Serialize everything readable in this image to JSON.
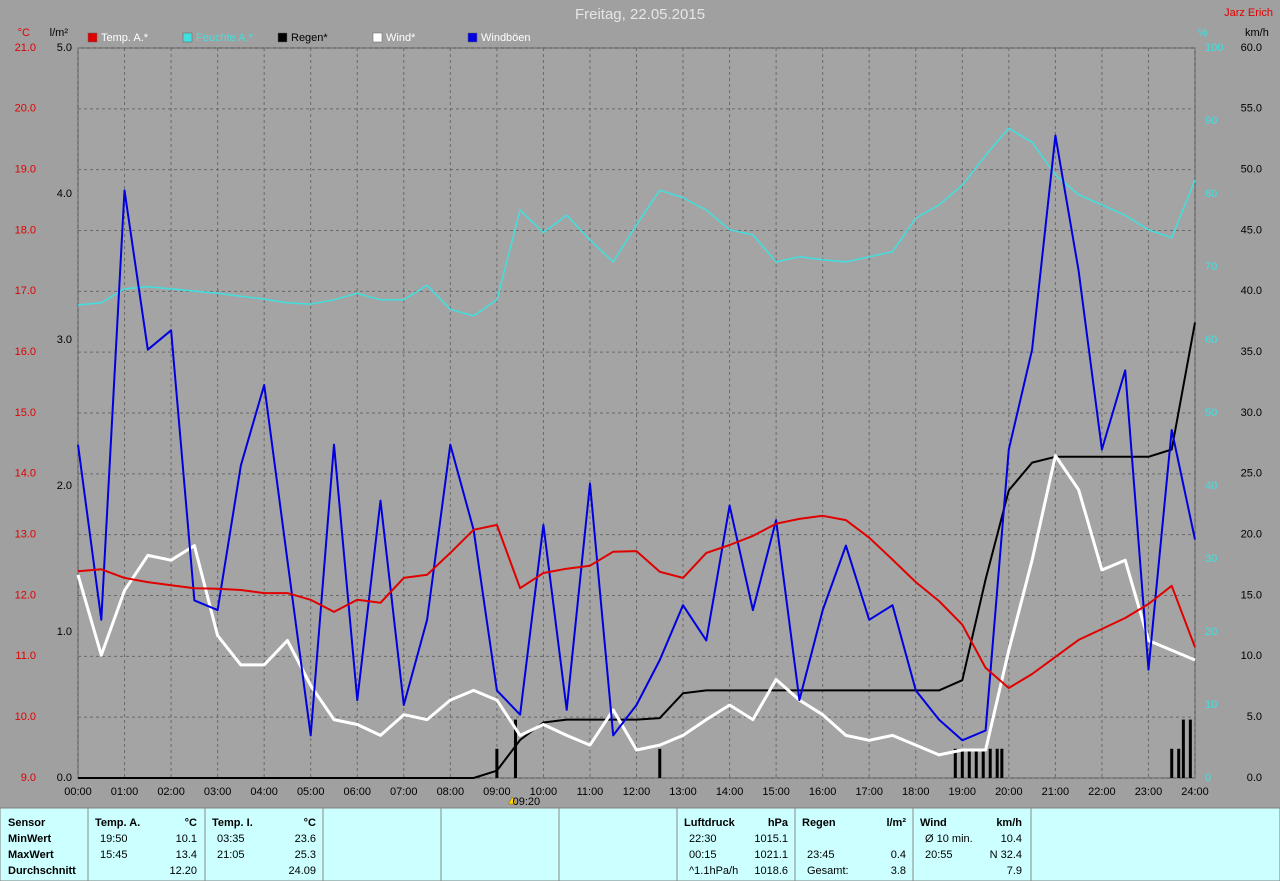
{
  "chart_data": {
    "type": "line",
    "title": "Freitag, 22.05.2015",
    "author": "Jarz Erich",
    "ylabel": "°C",
    "y2label": "l/m²",
    "y3label": "%",
    "y4label": "km/h",
    "xlim": [
      0,
      24
    ],
    "xticks": [
      {
        "value": 0,
        "label": "00:00"
      },
      {
        "value": 1,
        "label": "01:00"
      },
      {
        "value": 2,
        "label": "02:00"
      },
      {
        "value": 3,
        "label": "03:00"
      },
      {
        "value": 4,
        "label": "04:00"
      },
      {
        "value": 5,
        "label": "05:00"
      },
      {
        "value": 6,
        "label": "06:00"
      },
      {
        "value": 7,
        "label": "07:00"
      },
      {
        "value": 8,
        "label": "08:00"
      },
      {
        "value": 9,
        "label": "09:00"
      },
      {
        "value": 10,
        "label": "10:00"
      },
      {
        "value": 11,
        "label": "11:00"
      },
      {
        "value": 12,
        "label": "12:00"
      },
      {
        "value": 13,
        "label": "13:00"
      },
      {
        "value": 14,
        "label": "14:00"
      },
      {
        "value": 15,
        "label": "15:00"
      },
      {
        "value": 16,
        "label": "16:00"
      },
      {
        "value": 17,
        "label": "17:00"
      },
      {
        "value": 18,
        "label": "18:00"
      },
      {
        "value": 19,
        "label": "19:00"
      },
      {
        "value": 20,
        "label": "20:00"
      },
      {
        "value": 21,
        "label": "21:00"
      },
      {
        "value": 22,
        "label": "22:00"
      },
      {
        "value": 23,
        "label": "23:00"
      },
      {
        "value": 24,
        "label": "24:00"
      }
    ],
    "ylim": [
      9,
      21
    ],
    "yticks": [
      {
        "value": 9,
        "label": "9.0"
      },
      {
        "value": 10,
        "label": "10.0"
      },
      {
        "value": 11,
        "label": "11.0"
      },
      {
        "value": 12,
        "label": "12.0"
      },
      {
        "value": 13,
        "label": "13.0"
      },
      {
        "value": 14,
        "label": "14.0"
      },
      {
        "value": 15,
        "label": "15.0"
      },
      {
        "value": 16,
        "label": "16.0"
      },
      {
        "value": 17,
        "label": "17.0"
      },
      {
        "value": 18,
        "label": "18.0"
      },
      {
        "value": 19,
        "label": "19.0"
      },
      {
        "value": 20,
        "label": "20.0"
      },
      {
        "value": 21,
        "label": "21.0"
      }
    ],
    "y2lim": [
      0,
      5
    ],
    "y2ticks": [
      {
        "value": 0,
        "label": "0.0"
      },
      {
        "value": 1,
        "label": "1.0"
      },
      {
        "value": 2,
        "label": "2.0"
      },
      {
        "value": 3,
        "label": "3.0"
      },
      {
        "value": 4,
        "label": "4.0"
      },
      {
        "value": 5,
        "label": "5.0"
      }
    ],
    "y3lim": [
      0,
      100
    ],
    "y3ticks": [
      0,
      10,
      20,
      30,
      40,
      50,
      60,
      70,
      80,
      90,
      100
    ],
    "y4lim": [
      0,
      60
    ],
    "y4ticks": [
      {
        "value": 0,
        "label": "0.0"
      },
      {
        "value": 5,
        "label": "5.0"
      },
      {
        "value": 10,
        "label": "10.0"
      },
      {
        "value": 15,
        "label": "15.0"
      },
      {
        "value": 20,
        "label": "20.0"
      },
      {
        "value": 25,
        "label": "25.0"
      },
      {
        "value": 30,
        "label": "30.0"
      },
      {
        "value": 35,
        "label": "35.0"
      },
      {
        "value": 40,
        "label": "40.0"
      },
      {
        "value": 45,
        "label": "45.0"
      },
      {
        "value": 50,
        "label": "50.0"
      },
      {
        "value": 55,
        "label": "55.0"
      },
      {
        "value": 60,
        "label": "60.0"
      }
    ],
    "grid": true,
    "marker": {
      "value": 9.333,
      "label": "09:20"
    },
    "x": [
      0,
      0.5,
      1,
      1.5,
      2,
      2.5,
      3,
      3.5,
      4,
      4.5,
      5,
      5.5,
      6,
      6.5,
      7,
      7.5,
      8,
      8.5,
      9,
      9.5,
      10,
      10.5,
      11,
      11.5,
      12,
      12.5,
      13,
      13.5,
      14,
      14.5,
      15,
      15.5,
      16,
      16.5,
      17,
      17.5,
      18,
      18.5,
      19,
      19.5,
      20,
      20.5,
      21,
      21.5,
      22,
      22.5,
      23,
      23.5,
      24
    ],
    "series": [
      {
        "name": "Temp. A.*",
        "color": "#e00000",
        "label_color": "#ffffff",
        "axis": "y",
        "width": 2,
        "values": [
          12.4,
          12.43,
          12.29,
          12.22,
          12.17,
          12.12,
          12.11,
          12.09,
          12.04,
          12.04,
          11.93,
          11.73,
          11.93,
          11.88,
          12.29,
          12.34,
          12.7,
          13.08,
          13.16,
          12.12,
          12.37,
          12.44,
          12.49,
          12.72,
          12.73,
          12.39,
          12.29,
          12.7,
          12.83,
          12.98,
          13.18,
          13.26,
          13.31,
          13.24,
          12.95,
          12.59,
          12.22,
          11.91,
          11.52,
          10.81,
          10.48,
          10.71,
          10.99,
          11.27,
          11.45,
          11.63,
          11.86,
          12.16,
          11.15
        ]
      },
      {
        "name": "Feuchte A.*",
        "color": "#40e0e0",
        "label_color": "#40e0e0",
        "axis": "y3",
        "width": 1.5,
        "values": [
          64.8,
          65.1,
          67.0,
          67.3,
          67.0,
          66.7,
          66.4,
          66.0,
          65.6,
          65.1,
          64.9,
          65.5,
          66.4,
          65.5,
          65.5,
          67.5,
          64.2,
          63.3,
          65.5,
          77.8,
          74.7,
          77.1,
          73.7,
          70.7,
          75.8,
          80.5,
          79.5,
          77.8,
          75.1,
          74.4,
          70.7,
          71.4,
          71.0,
          70.7,
          71.4,
          72.1,
          76.7,
          78.5,
          81.2,
          85.3,
          89.0,
          87.1,
          82.6,
          79.9,
          78.5,
          77.1,
          75.1,
          74.0,
          81.9
        ]
      },
      {
        "name": "Regen*",
        "color": "#000000",
        "label_color": "#000000",
        "axis": "y2",
        "width": 2,
        "values": [
          0,
          0,
          0,
          0,
          0,
          0,
          0,
          0,
          0,
          0,
          0,
          0,
          0,
          0,
          0,
          0,
          0,
          0,
          0.05,
          0.26,
          0.38,
          0.4,
          0.4,
          0.4,
          0.4,
          0.41,
          0.58,
          0.6,
          0.6,
          0.6,
          0.6,
          0.6,
          0.6,
          0.6,
          0.6,
          0.6,
          0.6,
          0.6,
          0.67,
          1.36,
          1.97,
          2.16,
          2.2,
          2.2,
          2.2,
          2.2,
          2.2,
          2.25,
          3.12
        ]
      },
      {
        "name": "Wind*",
        "color": "#ffffff",
        "label_color": "#ffffff",
        "axis": "y4",
        "width": 3,
        "values": [
          16.7,
          10.1,
          15.4,
          18.3,
          17.9,
          19.1,
          11.7,
          9.3,
          9.3,
          11.3,
          7.6,
          4.8,
          4.4,
          3.5,
          5.2,
          4.8,
          6.4,
          7.2,
          6.4,
          3.5,
          4.4,
          3.5,
          2.7,
          5.6,
          2.3,
          2.7,
          3.5,
          4.8,
          6.0,
          4.8,
          8.1,
          6.4,
          5.2,
          3.5,
          3.1,
          3.5,
          2.7,
          1.9,
          2.3,
          2.3,
          10.5,
          17.9,
          26.5,
          23.7,
          17.1,
          17.9,
          11.3,
          10.5,
          9.7
        ]
      },
      {
        "name": "Windböen",
        "color": "#0000e0",
        "label_color": "#ffffff",
        "axis": "y4",
        "width": 2,
        "values": [
          27.4,
          13.0,
          48.3,
          35.2,
          36.8,
          14.6,
          13.8,
          25.7,
          32.3,
          17.9,
          3.5,
          27.4,
          6.4,
          22.8,
          6.0,
          13.0,
          27.4,
          20.4,
          7.2,
          5.2,
          20.8,
          5.6,
          24.2,
          3.5,
          6.0,
          9.7,
          14.2,
          11.3,
          22.4,
          13.8,
          21.2,
          6.4,
          13.8,
          19.1,
          13.0,
          14.2,
          7.2,
          4.8,
          3.1,
          3.9,
          27.0,
          35.2,
          52.8,
          41.7,
          27.0,
          33.5,
          8.9,
          28.6,
          19.6
        ]
      }
    ],
    "rain_bars": {
      "color": "#000000",
      "axis": "y2",
      "x": [
        9.0,
        9.4,
        12.5,
        18.85,
        19.0,
        19.15,
        19.3,
        19.45,
        19.6,
        19.75,
        19.85,
        23.5,
        23.65,
        23.75,
        23.9
      ],
      "values": [
        0.2,
        0.4,
        0.2,
        0.2,
        0.2,
        0.2,
        0.2,
        0.2,
        0.2,
        0.2,
        0.2,
        0.2,
        0.2,
        0.4,
        0.4
      ]
    }
  },
  "stats": {
    "header": [
      "Sensor",
      "Temp. A.",
      "°C",
      "Temp. I.",
      "°C",
      "Luftdruck",
      "hPa",
      "Regen",
      "l/m²",
      "Wind",
      "km/h"
    ],
    "rows": [
      [
        "MinWert",
        "19:50",
        "10.1",
        "03:35",
        "23.6",
        "22:30",
        "1015.1",
        null,
        null,
        "Ø 10 min.",
        "10.4"
      ],
      [
        "MaxWert",
        "15:45",
        "13.4",
        "21:05",
        "25.3",
        "00:15",
        "1021.1",
        "23:45",
        "0.4",
        "20:55",
        "N 32.4"
      ],
      [
        "Durchschnitt",
        null,
        "12.20",
        null,
        "24.09",
        "^1.1hPa/h",
        "1018.6",
        "Gesamt:",
        "3.8",
        null,
        "7.9"
      ]
    ]
  }
}
